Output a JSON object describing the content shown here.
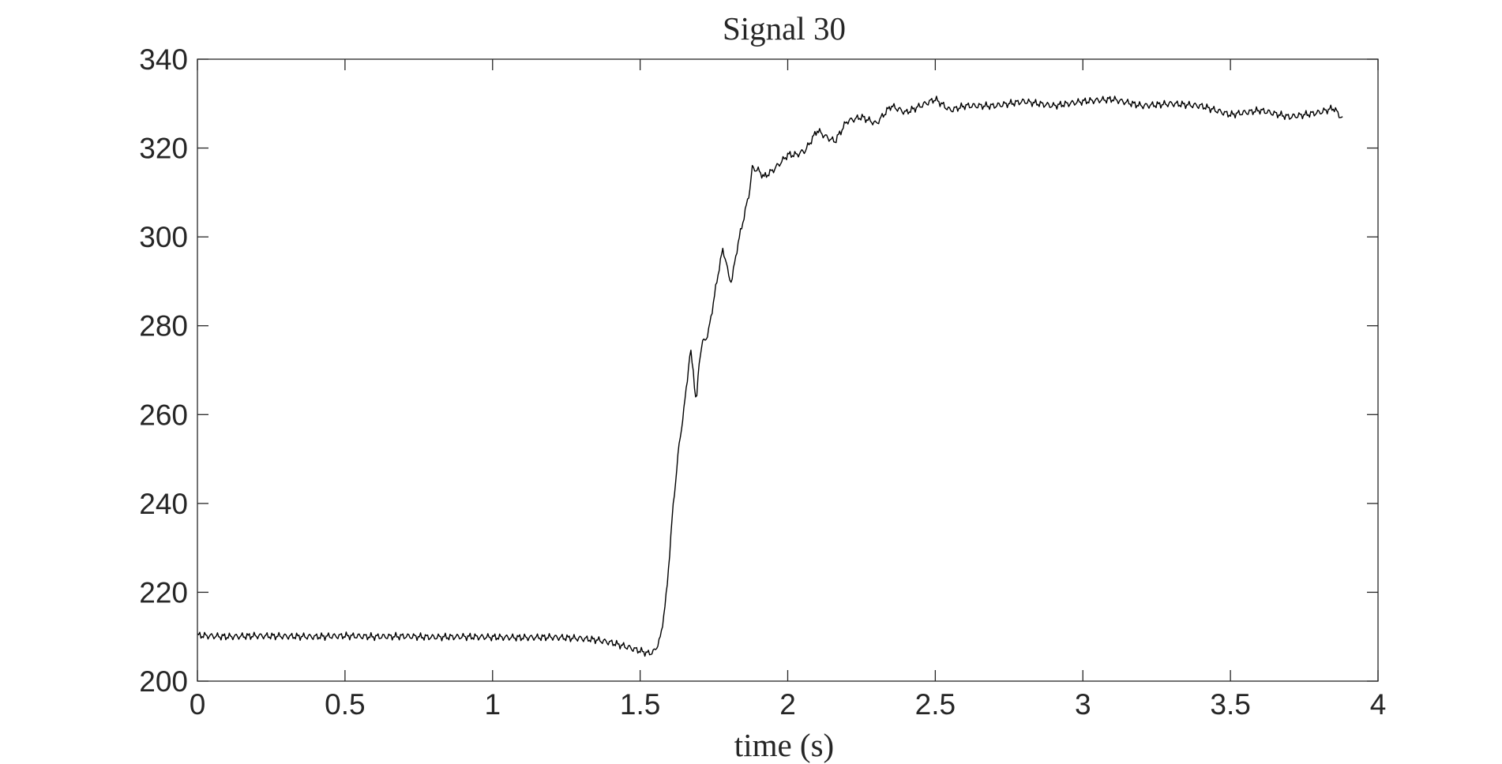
{
  "chart_data": {
    "type": "line",
    "title": "Signal 30",
    "xlabel": "time (s)",
    "ylabel": "",
    "xlim": [
      0,
      4
    ],
    "ylim": [
      200,
      340
    ],
    "xticks": [
      0,
      0.5,
      1,
      1.5,
      2,
      2.5,
      3,
      3.5,
      4
    ],
    "xtick_labels": [
      "0",
      "0.5",
      "1",
      "1.5",
      "2",
      "2.5",
      "3",
      "3.5",
      "4"
    ],
    "yticks": [
      200,
      220,
      240,
      260,
      280,
      300,
      320,
      340
    ],
    "ytick_labels": [
      "200",
      "220",
      "240",
      "260",
      "280",
      "300",
      "320",
      "340"
    ],
    "grid": false,
    "legend": "none",
    "line_color": "#000000",
    "axes_color": "#262626",
    "series": [
      {
        "x": [
          0,
          0.1,
          0.2,
          0.3,
          0.4,
          0.5,
          0.6,
          0.7,
          0.8,
          0.9,
          1.0,
          1.1,
          1.2,
          1.3,
          1.35,
          1.4,
          1.45,
          1.5,
          1.53,
          1.55,
          1.57,
          1.59,
          1.61,
          1.63,
          1.65,
          1.67,
          1.68,
          1.69,
          1.7,
          1.71,
          1.73,
          1.75,
          1.77,
          1.78,
          1.79,
          1.8,
          1.81,
          1.83,
          1.85,
          1.87,
          1.88,
          1.9,
          1.92,
          1.95,
          1.98,
          2.0,
          2.03,
          2.06,
          2.1,
          2.13,
          2.16,
          2.2,
          2.25,
          2.3,
          2.35,
          2.4,
          2.45,
          2.5,
          2.55,
          2.6,
          2.7,
          2.8,
          2.9,
          3.0,
          3.1,
          3.2,
          3.3,
          3.4,
          3.5,
          3.6,
          3.7,
          3.8,
          3.85,
          3.88
        ],
        "y": [
          210.3,
          210.0,
          210.2,
          210.1,
          210.0,
          210.2,
          210.0,
          210.1,
          209.9,
          210.0,
          209.9,
          209.8,
          209.9,
          209.6,
          209.3,
          208.7,
          207.8,
          206.8,
          206.2,
          206.8,
          210.0,
          220.0,
          238.0,
          252.0,
          262.0,
          274.5,
          270.0,
          262.0,
          272.0,
          276.0,
          278.0,
          286.0,
          294.0,
          297.0,
          295.0,
          291.0,
          290.0,
          298.0,
          304.0,
          310.0,
          315.5,
          315.0,
          313.5,
          315.0,
          317.0,
          318.5,
          318.5,
          319.5,
          324.0,
          322.5,
          321.5,
          326.0,
          327.0,
          325.5,
          329.5,
          328.0,
          329.5,
          331.0,
          328.5,
          329.5,
          329.5,
          330.5,
          329.5,
          330.5,
          331.0,
          329.5,
          330.0,
          329.5,
          327.5,
          328.5,
          327.0,
          328.0,
          329.0,
          326.5
        ]
      }
    ]
  }
}
